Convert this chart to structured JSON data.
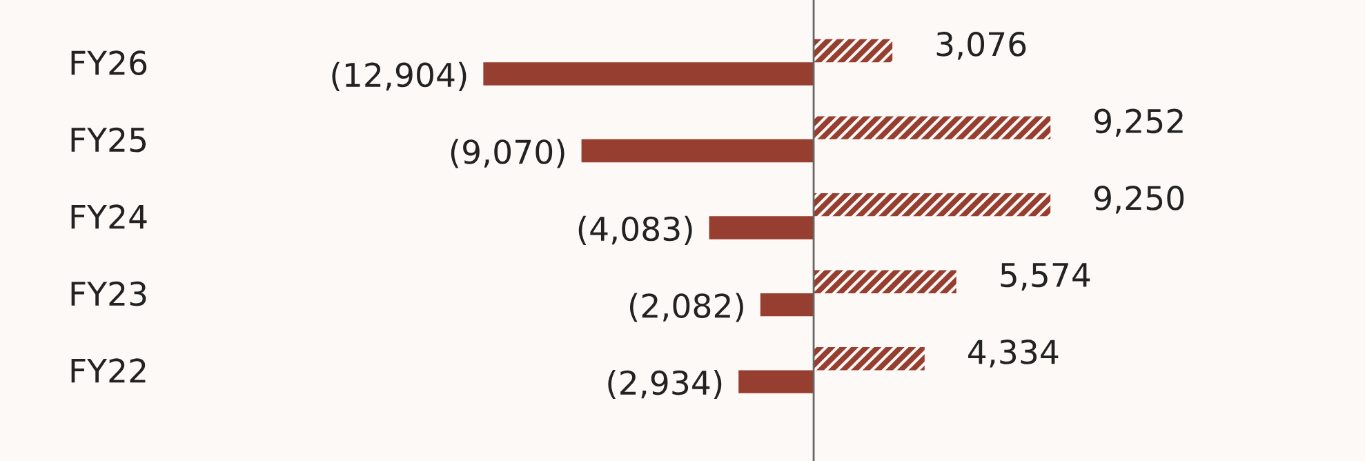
{
  "chart_data": {
    "type": "bar",
    "orientation": "horizontal",
    "categories": [
      "FY26",
      "FY25",
      "FY24",
      "FY23",
      "FY22"
    ],
    "series": [
      {
        "color": "#963e30",
        "values": [
          3076,
          9252,
          9250,
          5574,
          4334
        ],
        "value_labels": [
          "3,076",
          "9,252",
          "9,250",
          "5,574",
          "4,334"
        ]
      },
      {
        "color": "#963e30",
        "values": [
          -12904,
          -9070,
          -4083,
          -2082,
          -2934
        ],
        "value_labels": [
          "(12,904)",
          "(9,070)",
          "(4,083)",
          "(2,082)",
          "(2,934)"
        ]
      }
    ],
    "tick_labels": "y",
    "grid": false,
    "legend": false
  }
}
